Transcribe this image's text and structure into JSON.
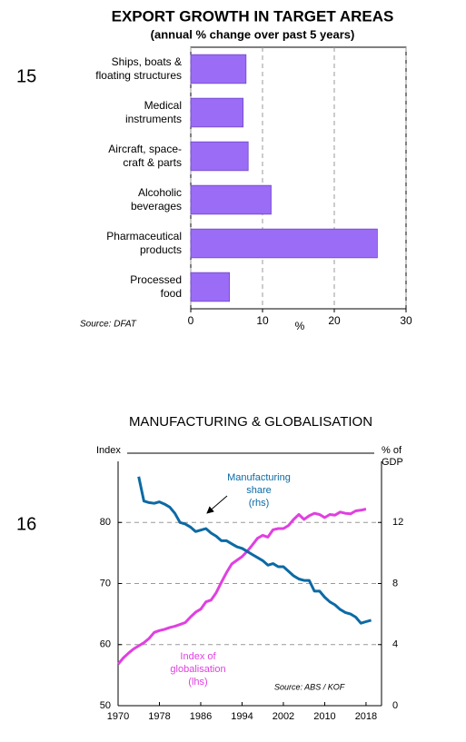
{
  "chart_data": [
    {
      "type": "bar",
      "orientation": "horizontal",
      "chart_number": "15",
      "title": "EXPORT GROWTH IN TARGET AREAS",
      "subtitle": "(annual % change over past 5 years)",
      "categories": [
        "Ships, boats &\nfloating structures",
        "Medical\ninstruments",
        "Aircraft, space-\ncraft & parts",
        "Alcoholic\nbeverages",
        "Pharmaceutical\nproducts",
        "Processed\nfood"
      ],
      "values": [
        7.7,
        7.3,
        8.0,
        11.2,
        26.0,
        5.4
      ],
      "color": "#9b6cf6",
      "xlim": [
        0,
        30
      ],
      "xticks": [
        0,
        10,
        20,
        30
      ],
      "xlabel": "%",
      "grid": true,
      "source": "Source: DFAT"
    },
    {
      "type": "line",
      "chart_number": "16",
      "title": "MANUFACTURING & GLOBALISATION",
      "ylabel": "Index",
      "y2label": "% of\nGDP",
      "x": [
        1970,
        1971,
        1972,
        1973,
        1974,
        1975,
        1976,
        1977,
        1978,
        1979,
        1980,
        1981,
        1982,
        1983,
        1984,
        1985,
        1986,
        1987,
        1988,
        1989,
        1990,
        1991,
        1992,
        1993,
        1994,
        1995,
        1996,
        1997,
        1998,
        1999,
        2000,
        2001,
        2002,
        2003,
        2004,
        2005,
        2006,
        2007,
        2008,
        2009,
        2010,
        2011,
        2012,
        2013,
        2014,
        2015,
        2016,
        2017,
        2018,
        2019
      ],
      "xlim": [
        1970,
        2021
      ],
      "xticks": [
        1970,
        1978,
        1986,
        1994,
        2002,
        2010,
        2018
      ],
      "ylim": [
        50,
        90
      ],
      "yticks": [
        50,
        60,
        70,
        80
      ],
      "y2lim": [
        0,
        16
      ],
      "y2ticks": [
        0,
        4,
        8,
        12
      ],
      "grid": true,
      "series": [
        {
          "name": "Index of\nglobalisation\n(lhs)",
          "color": "#e040e0",
          "values": [
            56.8,
            57.8,
            58.6,
            59.3,
            59.8,
            60.3,
            61.0,
            62.0,
            62.3,
            62.5,
            62.8,
            63.0,
            63.3,
            63.6,
            64.5,
            65.3,
            65.8,
            67.0,
            67.3,
            68.5,
            70.2,
            71.8,
            73.2,
            73.8,
            74.4,
            75.3,
            76.3,
            77.4,
            77.9,
            77.6,
            78.8,
            79.0,
            79.0,
            79.5,
            80.5,
            81.3,
            80.5,
            81.1,
            81.5,
            81.3,
            80.8,
            81.3,
            81.2,
            81.7,
            81.5,
            81.4,
            81.9,
            82.0,
            82.2,
            null
          ]
        },
        {
          "name": "Manufacturing\nshare\n(rhs)",
          "color": "#0b6aa5",
          "axis": "y2",
          "values": [
            null,
            null,
            null,
            null,
            15.0,
            13.4,
            13.3,
            13.25,
            13.35,
            13.2,
            13.0,
            12.6,
            12.0,
            11.9,
            11.7,
            11.4,
            11.5,
            11.6,
            11.3,
            11.1,
            10.8,
            10.8,
            10.6,
            10.4,
            10.3,
            10.1,
            9.9,
            9.7,
            9.5,
            9.2,
            9.3,
            9.1,
            9.1,
            8.8,
            8.5,
            8.3,
            8.2,
            8.2,
            7.5,
            7.5,
            7.1,
            6.8,
            6.6,
            6.3,
            6.1,
            6.0,
            5.8,
            5.4,
            5.5,
            5.6
          ]
        }
      ],
      "source": "Source: ABS / KOF"
    }
  ]
}
